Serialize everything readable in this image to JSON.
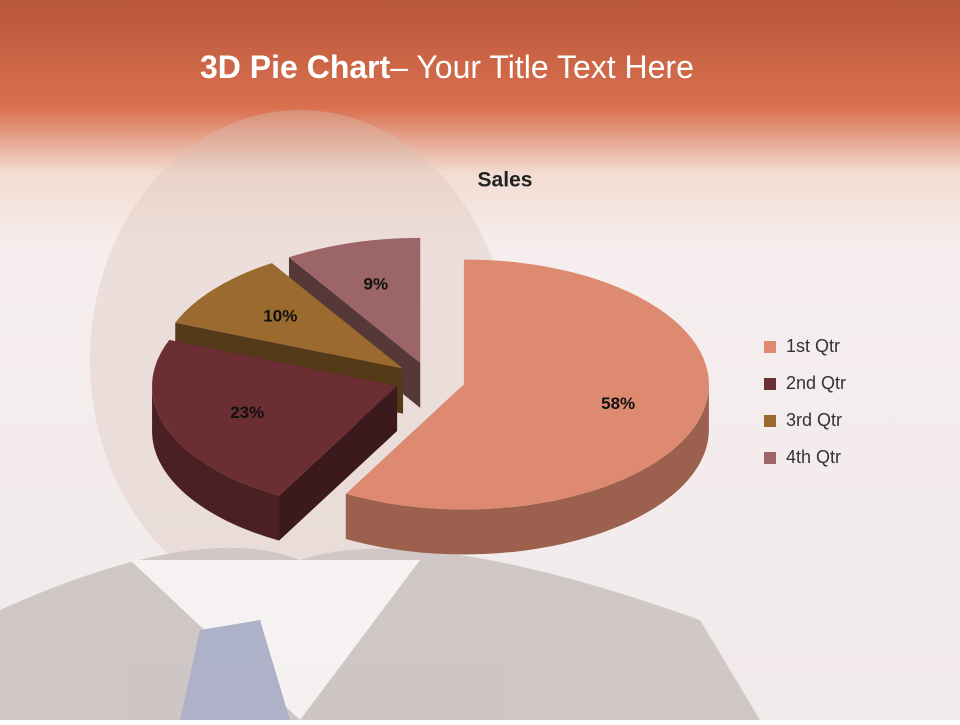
{
  "slide": {
    "title_bold": "3D Pie Chart",
    "title_rest": "– Your Title Text Here"
  },
  "chart_data": {
    "type": "pie",
    "title": "Sales",
    "categories": [
      "1st Qtr",
      "2nd Qtr",
      "3rd Qtr",
      "4th Qtr"
    ],
    "values": [
      58,
      23,
      10,
      9
    ],
    "value_labels": [
      "58%",
      "23%",
      "10%",
      "9%"
    ],
    "colors": [
      "#de8a70",
      "#6b2e32",
      "#9a6a2e",
      "#9c6568"
    ],
    "legend": "right"
  }
}
